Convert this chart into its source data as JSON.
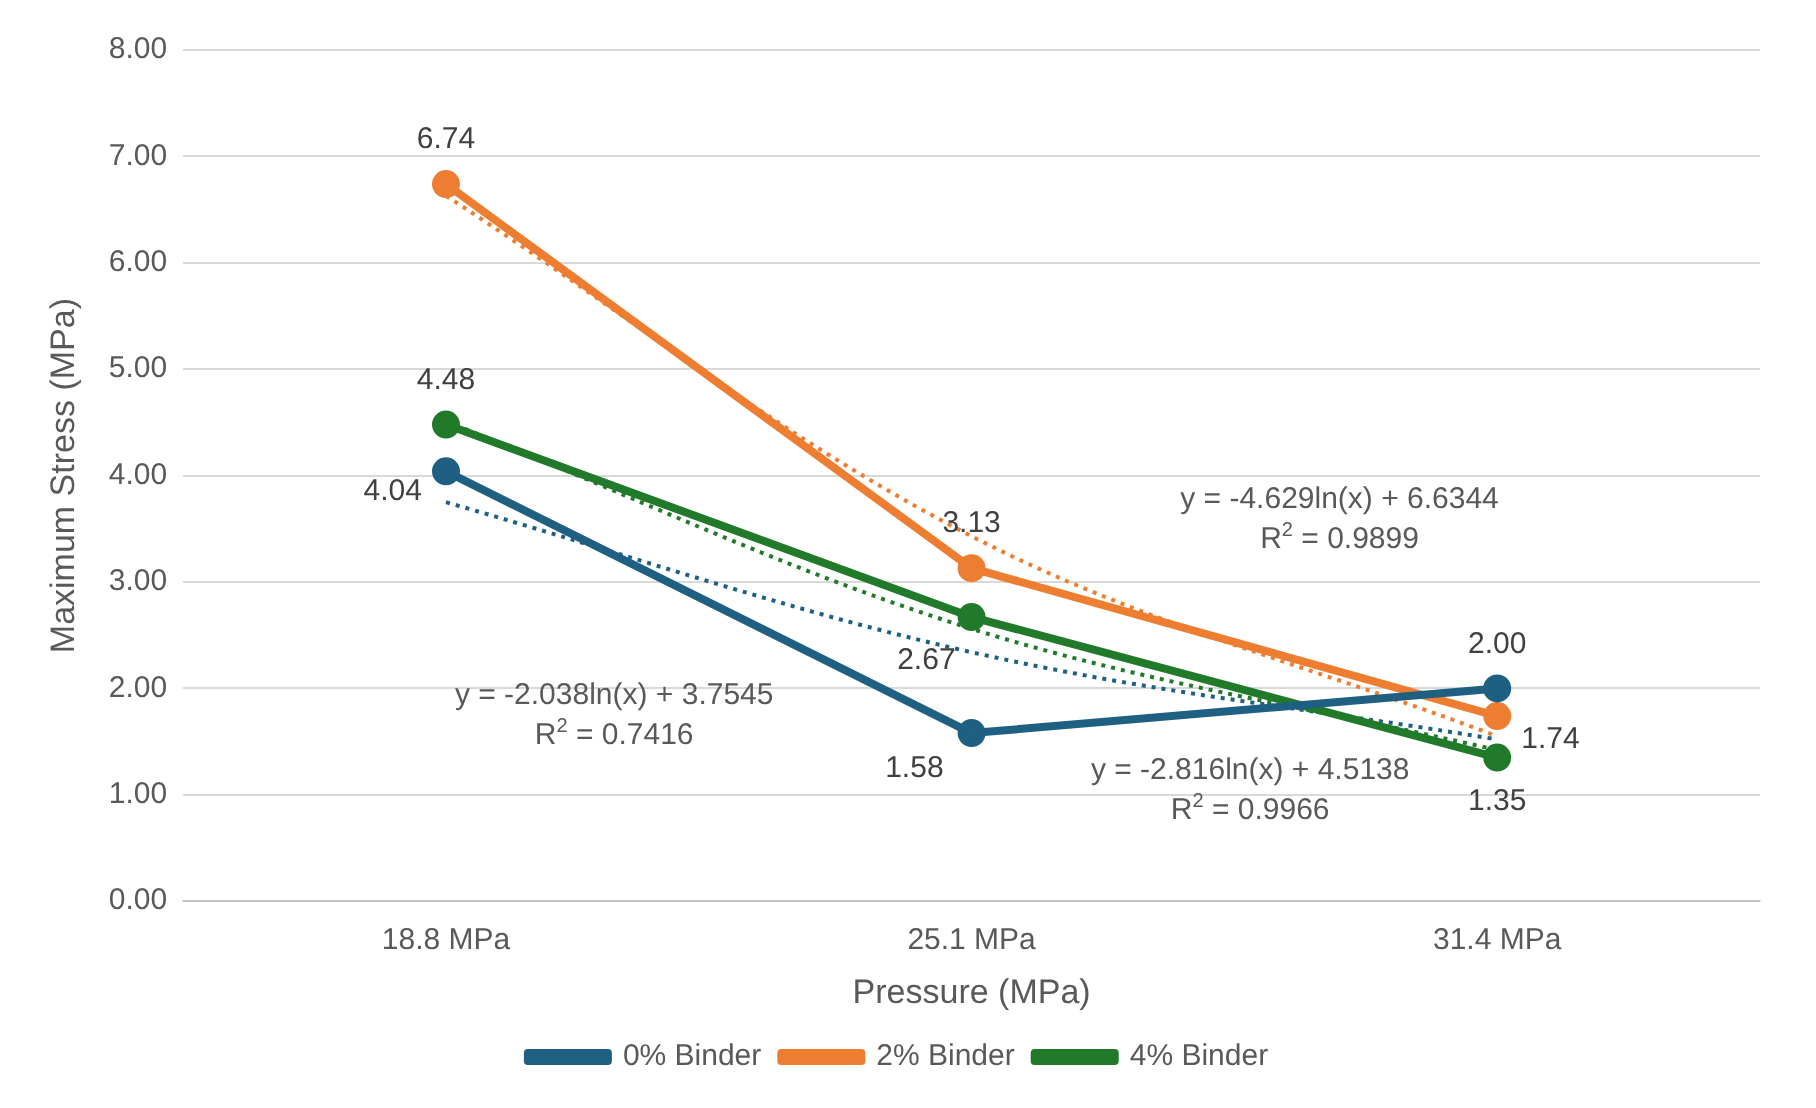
{
  "chart_data": {
    "type": "line",
    "xlabel": "Pressure (MPa)",
    "ylabel": "Maximum Stress (MPa)",
    "categories": [
      "18.8 MPa",
      "25.1 MPa",
      "31.4 MPa"
    ],
    "ylim": [
      0,
      8
    ],
    "yticks": [
      {
        "value": 0,
        "label": "0.00"
      },
      {
        "value": 1,
        "label": "1.00"
      },
      {
        "value": 2,
        "label": "2.00"
      },
      {
        "value": 3,
        "label": "3.00"
      },
      {
        "value": 4,
        "label": "4.00"
      },
      {
        "value": 5,
        "label": "5.00"
      },
      {
        "value": 6,
        "label": "6.00"
      },
      {
        "value": 7,
        "label": "7.00"
      },
      {
        "value": 8,
        "label": "8.00"
      }
    ],
    "grid": "y",
    "legend": "bottom",
    "marker": "circle",
    "line_style": "solid",
    "series": [
      {
        "name": "0% Binder",
        "color": "#1f5f82",
        "values": [
          4.04,
          1.58,
          2.0
        ],
        "value_labels": [
          "4.04",
          "1.58",
          "2.00"
        ]
      },
      {
        "name": "2% Binder",
        "color": "#ed7d31",
        "values": [
          6.74,
          3.13,
          1.74
        ],
        "value_labels": [
          "6.74",
          "3.13",
          "1.74"
        ]
      },
      {
        "name": "4% Binder",
        "color": "#217a2a",
        "values": [
          4.48,
          2.67,
          1.35
        ],
        "value_labels": [
          "4.48",
          "2.67",
          "1.35"
        ]
      },
      {
        "type": "line",
        "color": "#1f5f82",
        "values": [
          3.75,
          2.34,
          1.52
        ],
        "line_style": "dotted",
        "marker": "none"
      },
      {
        "type": "line",
        "color": "#ed7d31",
        "values": [
          6.63,
          3.43,
          1.55
        ],
        "line_style": "dotted",
        "marker": "none"
      },
      {
        "type": "line",
        "color": "#217a2a",
        "values": [
          4.51,
          2.56,
          1.42
        ],
        "line_style": "dotted",
        "marker": "none"
      }
    ],
    "annotations": [
      "y = -2.038ln(x) + 3.7545\nR$^{2}$ = 0.7416",
      "y = -4.629ln(x) + 6.6344\nR$^{2}$ = 0.9899",
      "y = -2.816ln(x) + 4.5138\nR$^{2}$ = 0.9966"
    ]
  }
}
